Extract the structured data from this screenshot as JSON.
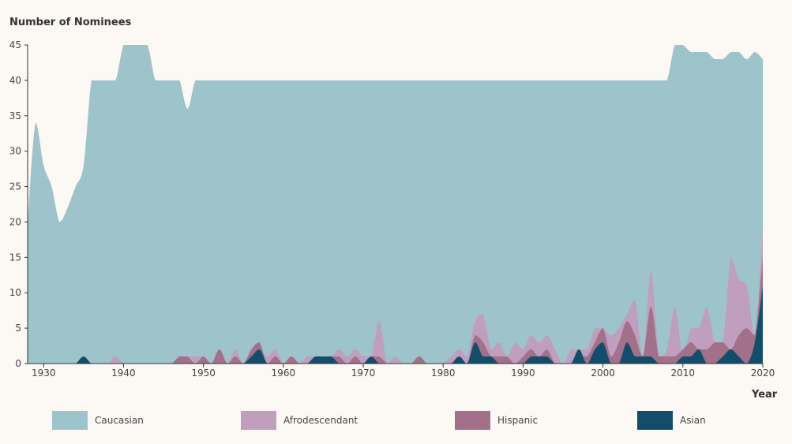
{
  "chart_data": {
    "type": "area",
    "ylabel": "Number of Nominees",
    "xlabel": "Year",
    "xlim": [
      1928,
      2020
    ],
    "ylim": [
      0,
      45
    ],
    "x_ticks": [
      1930,
      1940,
      1950,
      1960,
      1970,
      1980,
      1990,
      2000,
      2010,
      2020
    ],
    "y_ticks": [
      0,
      5,
      10,
      15,
      20,
      25,
      30,
      35,
      40,
      45
    ],
    "legend_position": "bottom",
    "grid": false,
    "years": [
      1928,
      1929,
      1930,
      1931,
      1932,
      1933,
      1934,
      1935,
      1936,
      1937,
      1938,
      1939,
      1940,
      1941,
      1942,
      1943,
      1944,
      1945,
      1946,
      1947,
      1948,
      1949,
      1950,
      1951,
      1952,
      1953,
      1954,
      1955,
      1956,
      1957,
      1958,
      1959,
      1960,
      1961,
      1962,
      1963,
      1964,
      1965,
      1966,
      1967,
      1968,
      1969,
      1970,
      1971,
      1972,
      1973,
      1974,
      1975,
      1976,
      1977,
      1978,
      1979,
      1980,
      1981,
      1982,
      1983,
      1984,
      1985,
      1986,
      1987,
      1988,
      1989,
      1990,
      1991,
      1992,
      1993,
      1994,
      1995,
      1996,
      1997,
      1998,
      1999,
      2000,
      2001,
      2002,
      2003,
      2004,
      2005,
      2006,
      2007,
      2008,
      2009,
      2010,
      2011,
      2012,
      2013,
      2014,
      2015,
      2016,
      2017,
      2018,
      2019,
      2020
    ],
    "series": [
      {
        "name": "Caucasian",
        "color": "#9dc4ca",
        "values": [
          20,
          34,
          28,
          25,
          20,
          22,
          25,
          28,
          40,
          40,
          40,
          40,
          45,
          45,
          45,
          45,
          40,
          40,
          40,
          40,
          36,
          40,
          40,
          40,
          40,
          40,
          40,
          40,
          40,
          40,
          40,
          40,
          40,
          40,
          40,
          40,
          40,
          40,
          40,
          40,
          40,
          40,
          40,
          40,
          40,
          40,
          40,
          40,
          40,
          40,
          40,
          40,
          40,
          40,
          40,
          40,
          40,
          40,
          40,
          40,
          40,
          40,
          40,
          40,
          40,
          40,
          40,
          40,
          40,
          40,
          40,
          40,
          40,
          40,
          40,
          40,
          40,
          40,
          40,
          40,
          40,
          45,
          45,
          44,
          44,
          44,
          43,
          43,
          44,
          44,
          43,
          44,
          43
        ]
      },
      {
        "name": "Afrodescendant",
        "color": "#c09fbe",
        "values": [
          0,
          0,
          0,
          0,
          0,
          0,
          0,
          0,
          0,
          0,
          0,
          1,
          0,
          0,
          0,
          0,
          0,
          0,
          0,
          1,
          1,
          1,
          1,
          0,
          2,
          0,
          2,
          0,
          2,
          2,
          1,
          2,
          0,
          1,
          0,
          1,
          1,
          1,
          1,
          2,
          1,
          2,
          1,
          1,
          6,
          0,
          1,
          0,
          0,
          1,
          0,
          0,
          0,
          1,
          2,
          1,
          6,
          7,
          2,
          3,
          1,
          3,
          2,
          4,
          3,
          4,
          2,
          0,
          2,
          2,
          2,
          5,
          5,
          4,
          5,
          7,
          9,
          1,
          13,
          1,
          2,
          8,
          1,
          5,
          5,
          8,
          3,
          3,
          15,
          12,
          11,
          4,
          19
        ]
      },
      {
        "name": "Hispanic",
        "color": "#a37089",
        "values": [
          0,
          0,
          0,
          0,
          0,
          0,
          0,
          0,
          0,
          0,
          0,
          0,
          0,
          0,
          0,
          0,
          0,
          0,
          0,
          1,
          1,
          0,
          1,
          0,
          2,
          0,
          1,
          0,
          2,
          3,
          0,
          1,
          0,
          1,
          0,
          0,
          1,
          1,
          1,
          1,
          0,
          1,
          0,
          1,
          1,
          0,
          0,
          0,
          0,
          1,
          0,
          0,
          0,
          0,
          1,
          0,
          4,
          3,
          1,
          1,
          1,
          0,
          1,
          2,
          1,
          2,
          0,
          0,
          0,
          1,
          1,
          3,
          5,
          1,
          3,
          6,
          4,
          1,
          8,
          1,
          1,
          1,
          2,
          3,
          2,
          2,
          3,
          3,
          2,
          4,
          5,
          4,
          15
        ]
      },
      {
        "name": "Asian",
        "color": "#124e6b",
        "values": [
          0,
          0,
          0,
          0,
          0,
          0,
          0,
          1,
          0,
          0,
          0,
          0,
          0,
          0,
          0,
          0,
          0,
          0,
          0,
          0,
          0,
          0,
          0,
          0,
          0,
          0,
          0,
          0,
          1,
          2,
          0,
          0,
          0,
          0,
          0,
          0,
          1,
          1,
          1,
          0,
          0,
          0,
          0,
          1,
          0,
          0,
          0,
          0,
          0,
          0,
          0,
          0,
          0,
          0,
          1,
          0,
          3,
          1,
          1,
          0,
          0,
          0,
          0,
          1,
          1,
          1,
          0,
          0,
          0,
          2,
          0,
          2,
          3,
          0,
          0,
          3,
          1,
          1,
          1,
          0,
          0,
          0,
          1,
          1,
          2,
          0,
          0,
          1,
          2,
          1,
          0,
          3,
          11
        ]
      }
    ]
  }
}
